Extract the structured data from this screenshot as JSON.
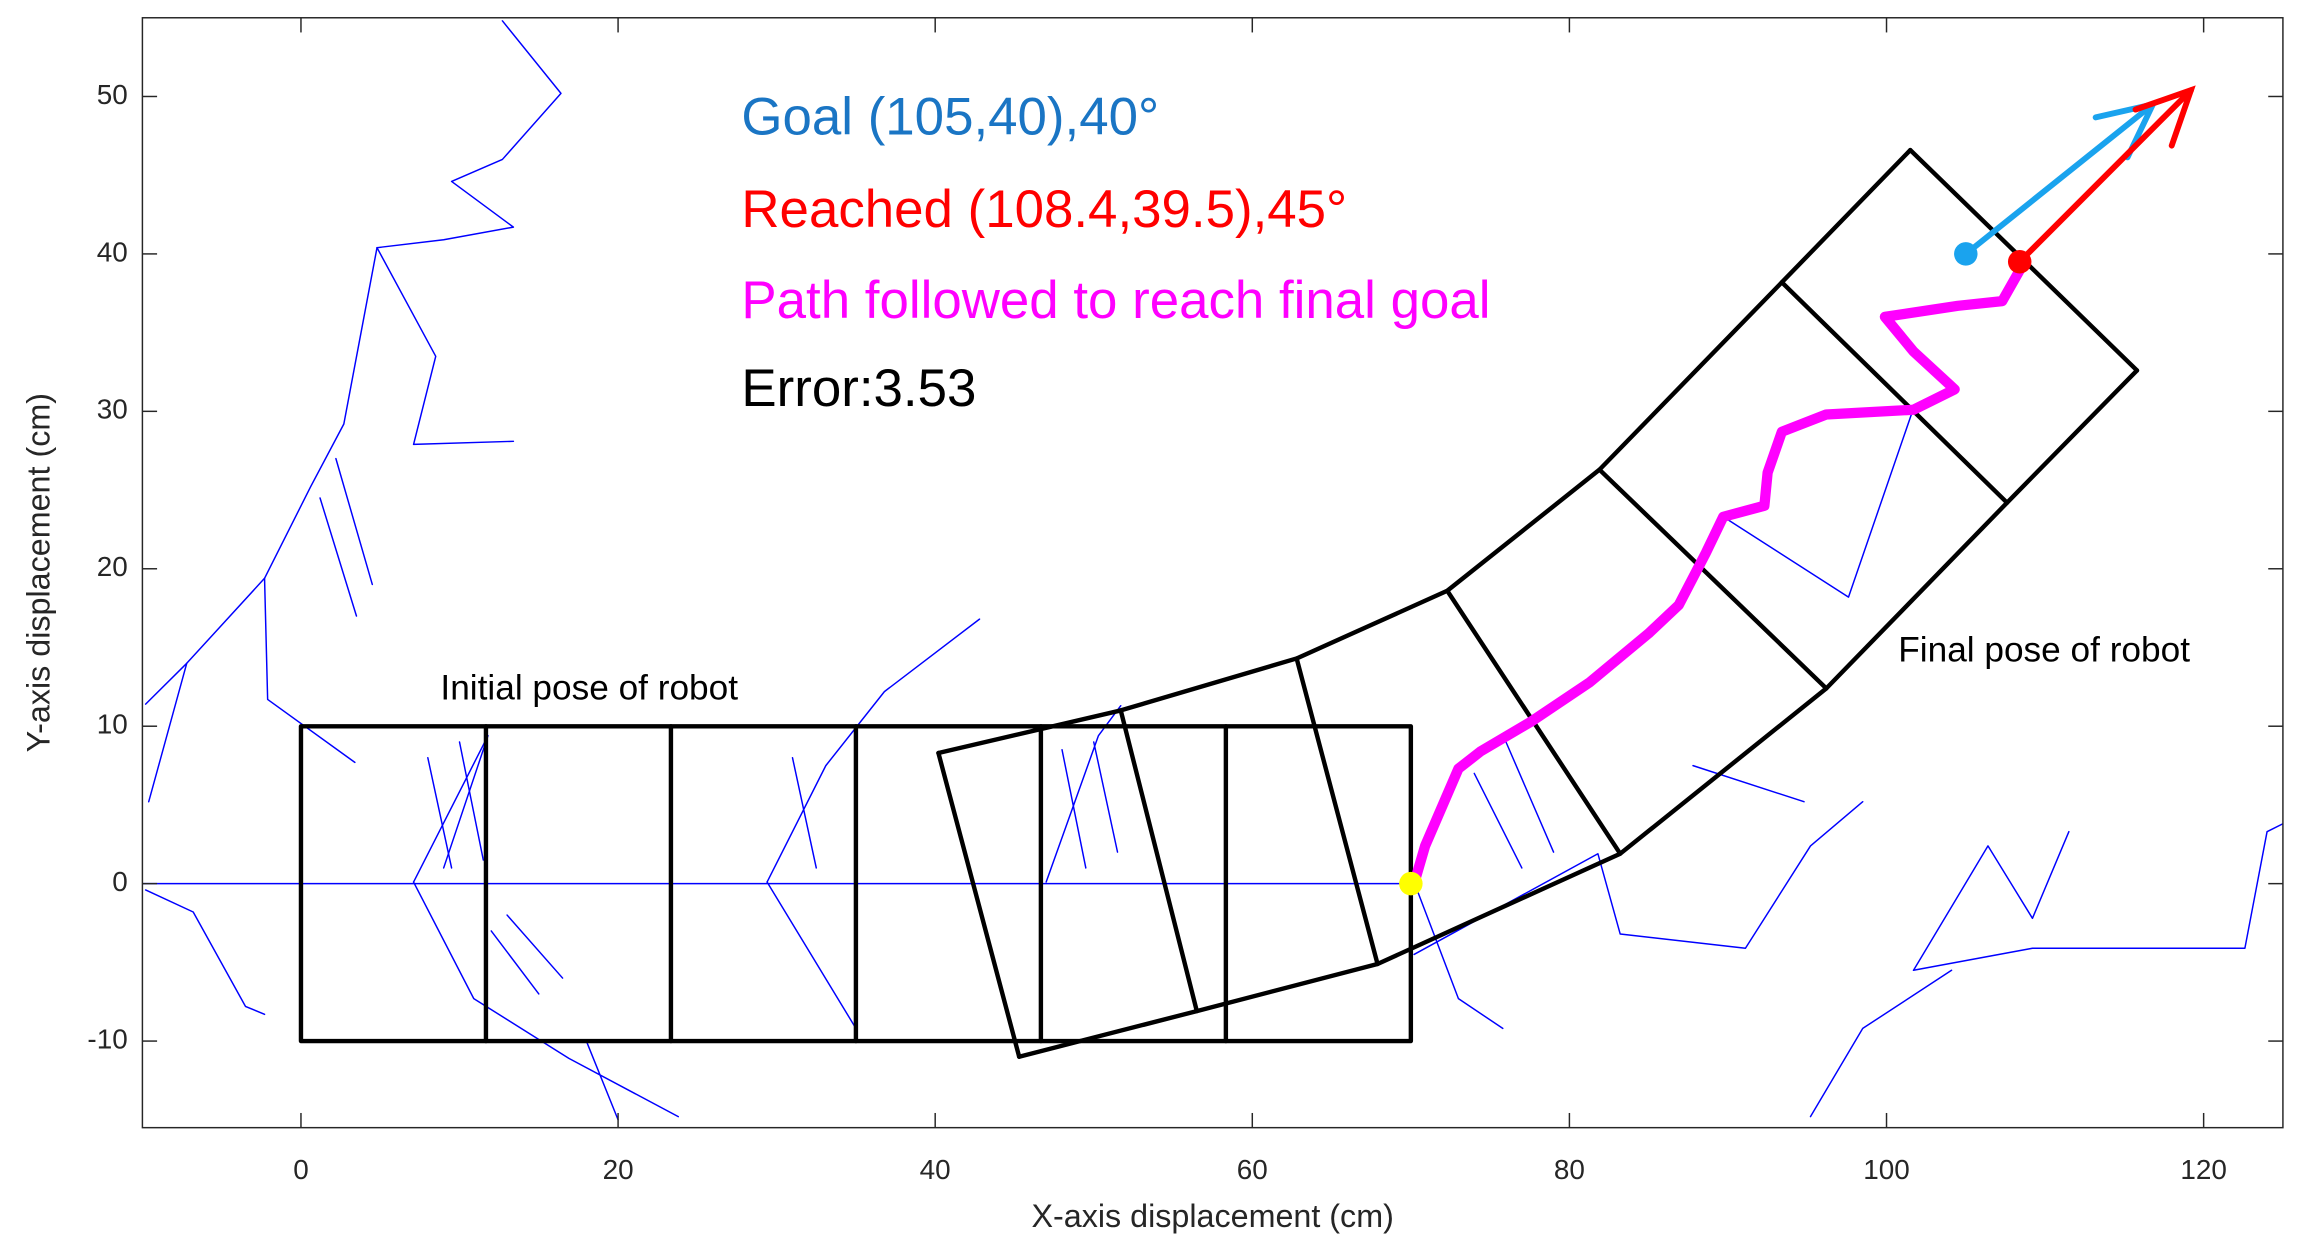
{
  "chart_data": {
    "type": "line",
    "xlabel": "X-axis displacement (cm)",
    "ylabel": "Y-axis displacement (cm)",
    "xlim": [
      -10,
      125
    ],
    "ylim": [
      -15.5,
      55
    ],
    "xticks": [
      0,
      20,
      40,
      60,
      80,
      100,
      120
    ],
    "yticks": [
      -10,
      0,
      10,
      20,
      30,
      40,
      50
    ],
    "grid": false,
    "annotations": [
      {
        "text": "Goal (105,40),40°",
        "color": "#1a75c4"
      },
      {
        "text": "Reached (108.4,39.5),45°",
        "color": "#ff0000"
      },
      {
        "text": "Path followed to reach final goal",
        "color": "#ff00ff"
      },
      {
        "text": "Error:3.53",
        "color": "#000000"
      },
      {
        "text": "Initial pose of robot",
        "color": "#000000"
      },
      {
        "text": "Final pose of robot",
        "color": "#000000"
      }
    ],
    "series": [
      {
        "color": "#0000ff",
        "width": 1,
        "x": [
          -10,
          70
        ],
        "y": [
          0,
          0
        ]
      },
      {
        "color": "#0000ff",
        "width": 1,
        "x": [
          -9.8,
          -7.2,
          -2.3,
          0.6,
          2.7,
          4.8,
          9.0,
          13.4,
          9.5,
          12.7,
          16.4,
          12.7
        ],
        "y": [
          11.4,
          14.0,
          19.4,
          25.2,
          29.2,
          40.4,
          40.9,
          41.7,
          44.6,
          46.0,
          50.2,
          54.8
        ]
      },
      {
        "color": "#0000ff",
        "width": 1,
        "x": [
          -2.3,
          -2.1,
          3.4
        ],
        "y": [
          19.4,
          11.7,
          7.7
        ]
      },
      {
        "color": "#0000ff",
        "width": 1,
        "x": [
          -7.2,
          -9.6
        ],
        "y": [
          14.0,
          5.2
        ]
      },
      {
        "color": "#0000ff",
        "width": 1,
        "x": [
          4.8,
          8.5,
          7.1,
          13.4
        ],
        "y": [
          40.4,
          33.5,
          27.9,
          28.1
        ]
      },
      {
        "color": "#0000ff",
        "width": 1,
        "x": [
          -9.8,
          -6.8,
          -3.5,
          -2.3
        ],
        "y": [
          -0.4,
          -1.8,
          -7.8,
          -8.3
        ]
      },
      {
        "color": "#0000ff",
        "width": 1,
        "x": [
          7.1,
          11.8,
          9.0
        ],
        "y": [
          0.1,
          9.4,
          1.0
        ]
      },
      {
        "color": "#0000ff",
        "width": 1,
        "x": [
          7.1,
          10.9,
          16.9,
          23.8
        ],
        "y": [
          0.1,
          -7.3,
          -11.1,
          -14.8
        ]
      },
      {
        "color": "#0000ff",
        "width": 1,
        "x": [
          29.4,
          33.1,
          36.8,
          42.8
        ],
        "y": [
          0.1,
          7.5,
          12.2,
          16.8
        ]
      },
      {
        "color": "#0000ff",
        "width": 1,
        "x": [
          29.4,
          35.0
        ],
        "y": [
          0.1,
          -9.2
        ]
      },
      {
        "color": "#0000ff",
        "width": 1,
        "x": [
          47.0,
          50.3,
          51.7
        ],
        "y": [
          0.1,
          9.4,
          11.3
        ]
      },
      {
        "color": "#0000ff",
        "width": 1,
        "x": [
          70.2,
          73.0,
          75.8
        ],
        "y": [
          0.1,
          -7.3,
          -9.2
        ]
      },
      {
        "color": "#0000ff",
        "width": 1,
        "x": [
          70.2,
          81.8,
          83.2,
          91.1,
          95.2,
          98.5
        ],
        "y": [
          -4.5,
          1.9,
          -3.2,
          -4.1,
          2.4,
          5.2
        ]
      },
      {
        "color": "#0000ff",
        "width": 1,
        "x": [
          101.7,
          106.4,
          109.2,
          111.5
        ],
        "y": [
          -5.5,
          2.4,
          -2.2,
          3.3
        ]
      },
      {
        "color": "#0000ff",
        "width": 1,
        "x": [
          101.7,
          109.2,
          122.6,
          124.0,
          125
        ],
        "y": [
          -5.5,
          -4.1,
          -4.1,
          3.3,
          3.8
        ]
      },
      {
        "color": "#0000ff",
        "width": 1,
        "x": [
          89.7,
          97.6,
          101.7
        ],
        "y": [
          23.3,
          18.2,
          30.2
        ]
      },
      {
        "color": "#0000ff",
        "width": 1,
        "x": [
          87.8,
          94.8
        ],
        "y": [
          7.5,
          5.2
        ]
      },
      {
        "color": "#0000ff",
        "width": 1,
        "x": [
          95.2,
          98.5,
          104.1
        ],
        "y": [
          -14.8,
          -9.2,
          -5.5
        ]
      },
      {
        "color": "#0000ff",
        "width": 1,
        "x": [
          1.2,
          3.5
        ],
        "y": [
          24.5,
          17
        ]
      },
      {
        "color": "#0000ff",
        "width": 1,
        "x": [
          2.2,
          4.5
        ],
        "y": [
          27,
          19
        ]
      },
      {
        "color": "#0000ff",
        "width": 1,
        "x": [
          8,
          9.5
        ],
        "y": [
          8,
          1
        ]
      },
      {
        "color": "#0000ff",
        "width": 1,
        "x": [
          10,
          11.5
        ],
        "y": [
          9,
          1.5
        ]
      },
      {
        "color": "#0000ff",
        "width": 1,
        "x": [
          12,
          15
        ],
        "y": [
          -3,
          -7
        ]
      },
      {
        "color": "#0000ff",
        "width": 1,
        "x": [
          13,
          16.5
        ],
        "y": [
          -2,
          -6
        ]
      },
      {
        "color": "#0000ff",
        "width": 1,
        "x": [
          31,
          32.5
        ],
        "y": [
          8,
          1
        ]
      },
      {
        "color": "#0000ff",
        "width": 1,
        "x": [
          48,
          49.5
        ],
        "y": [
          8.5,
          1
        ]
      },
      {
        "color": "#0000ff",
        "width": 1,
        "x": [
          50,
          51.5
        ],
        "y": [
          9,
          2
        ]
      },
      {
        "color": "#0000ff",
        "width": 1,
        "x": [
          74,
          77
        ],
        "y": [
          7,
          1
        ]
      },
      {
        "color": "#0000ff",
        "width": 1,
        "x": [
          76,
          79
        ],
        "y": [
          9,
          2
        ]
      },
      {
        "color": "#0000ff",
        "width": 1,
        "x": [
          18,
          20
        ],
        "y": [
          -10,
          -15
        ]
      },
      {
        "color": "#000000",
        "width": 3,
        "x": [
          0,
          70,
          70,
          0,
          0
        ],
        "y": [
          -10,
          -10,
          10,
          10,
          -10
        ]
      },
      {
        "color": "#000000",
        "width": 3,
        "x": [
          11.67,
          11.67
        ],
        "y": [
          -10,
          10
        ]
      },
      {
        "color": "#000000",
        "width": 3,
        "x": [
          23.33,
          23.33
        ],
        "y": [
          -10,
          10
        ]
      },
      {
        "color": "#000000",
        "width": 3,
        "x": [
          35,
          35
        ],
        "y": [
          -10,
          10
        ]
      },
      {
        "color": "#000000",
        "width": 3,
        "x": [
          46.67,
          46.67
        ],
        "y": [
          -10,
          10
        ]
      },
      {
        "color": "#000000",
        "width": 3,
        "x": [
          58.33,
          58.33
        ],
        "y": [
          -10,
          10
        ]
      },
      {
        "color": "#000000",
        "width": 3,
        "x": [
          40.2,
          51.7,
          62.8,
          72.3,
          81.9,
          93.4,
          101.5
        ],
        "y": [
          8.3,
          11.0,
          14.3,
          18.6,
          26.3,
          38.2,
          46.6
        ]
      },
      {
        "color": "#000000",
        "width": 3,
        "x": [
          45.3,
          56.5,
          67.9,
          83.2,
          96.2,
          107.6,
          115.8
        ],
        "y": [
          -11.0,
          -8.1,
          -5.1,
          1.9,
          12.4,
          24.2,
          32.6
        ]
      },
      {
        "color": "#000000",
        "width": 3,
        "x": [
          40.2,
          45.3
        ],
        "y": [
          8.3,
          -11.0
        ]
      },
      {
        "color": "#000000",
        "width": 3,
        "x": [
          51.7,
          56.5
        ],
        "y": [
          11.0,
          -8.1
        ]
      },
      {
        "color": "#000000",
        "width": 3,
        "x": [
          62.8,
          67.9
        ],
        "y": [
          14.3,
          -5.1
        ]
      },
      {
        "color": "#000000",
        "width": 3,
        "x": [
          72.3,
          83.2
        ],
        "y": [
          18.6,
          1.9
        ]
      },
      {
        "color": "#000000",
        "width": 3,
        "x": [
          81.9,
          96.2
        ],
        "y": [
          26.3,
          12.4
        ]
      },
      {
        "color": "#000000",
        "width": 3,
        "x": [
          93.4,
          107.6
        ],
        "y": [
          38.2,
          24.2
        ]
      },
      {
        "color": "#000000",
        "width": 3,
        "x": [
          101.5,
          115.8
        ],
        "y": [
          46.6,
          32.6
        ]
      },
      {
        "color": "#ff00ff",
        "width": 7,
        "x": [
          70.2,
          70.9,
          73.0,
          74.4,
          77.6,
          81.3,
          85.0,
          86.9,
          88.6,
          89.7,
          92.3,
          92.5,
          93.4,
          96.2,
          101.7,
          104.3,
          101.7,
          99.9,
          104.5,
          107.3,
          108.7
        ],
        "y": [
          0,
          2.4,
          7.3,
          8.4,
          10.3,
          12.8,
          15.9,
          17.7,
          21.0,
          23.3,
          24.0,
          26.1,
          28.7,
          29.8,
          30.1,
          31.4,
          33.8,
          36.0,
          36.7,
          37.0,
          39.5
        ]
      },
      {
        "color": "#1aa3ee",
        "width": 4,
        "arrow": true,
        "x": [
          105,
          116.8
        ],
        "y": [
          40,
          49.5
        ]
      },
      {
        "color": "#ff0000",
        "width": 4,
        "arrow": true,
        "x": [
          108.4,
          119.2
        ],
        "y": [
          39.5,
          50.4
        ]
      }
    ],
    "points": [
      {
        "color": "#ffff00",
        "x": 70,
        "y": 0
      },
      {
        "color": "#1aa3ee",
        "x": 105,
        "y": 40
      },
      {
        "color": "#ff0000",
        "x": 108.4,
        "y": 39.5
      }
    ]
  }
}
